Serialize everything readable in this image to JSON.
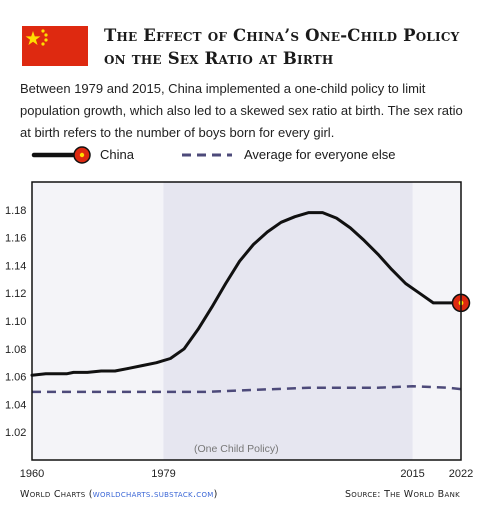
{
  "header": {
    "title": "The Effect of China’s One-Child Policy on the Sex Ratio at Birth",
    "description": "Between 1979 and 2015, China implemented a one-child policy to limit population growth, which also led to a skewed sex ratio at birth. The sex ratio at birth refers to the number of boys born for every girl.",
    "flag_icon": "china-flag-icon"
  },
  "legend": {
    "china": "China",
    "average": "Average for everyone else"
  },
  "footer": {
    "brand": "World Charts",
    "link": "worldcharts.substack.com",
    "source": "Source: The World Bank"
  },
  "colors": {
    "china_line": "#111111",
    "average_line": "#4d4a7a",
    "policy_band": "#e6e6f0",
    "plot_bg": "#f4f4f8",
    "flag_red": "#de2910",
    "flag_yellow": "#ffde00"
  },
  "chart_data": {
    "type": "line",
    "title": "",
    "xlabel": "",
    "ylabel": "",
    "xlim": [
      1960,
      2022
    ],
    "ylim": [
      1.0,
      1.2
    ],
    "grid": false,
    "x_ticks": [
      1960,
      1979,
      2015,
      2022
    ],
    "y_ticks": [
      1.02,
      1.04,
      1.06,
      1.08,
      1.1,
      1.12,
      1.14,
      1.16,
      1.18
    ],
    "y_tick_labels": [
      "1.02",
      "1.04",
      "1.06",
      "1.08",
      "1.10",
      "1.12",
      "1.14",
      "1.16",
      "1.18"
    ],
    "legend_position": "top",
    "annotation": {
      "text": "(One Child Policy)",
      "x_start": 1979,
      "x_end": 2015
    },
    "series": [
      {
        "name": "China",
        "style": "solid",
        "x": [
          1960,
          1962,
          1965,
          1966,
          1968,
          1970,
          1972,
          1974,
          1976,
          1978,
          1980,
          1982,
          1984,
          1986,
          1988,
          1990,
          1992,
          1994,
          1996,
          1998,
          2000,
          2002,
          2004,
          2006,
          2008,
          2010,
          2012,
          2014,
          2016,
          2018,
          2020,
          2022
        ],
        "y": [
          1.061,
          1.062,
          1.062,
          1.063,
          1.063,
          1.064,
          1.064,
          1.066,
          1.068,
          1.07,
          1.073,
          1.08,
          1.094,
          1.11,
          1.127,
          1.143,
          1.155,
          1.164,
          1.171,
          1.175,
          1.178,
          1.178,
          1.174,
          1.167,
          1.158,
          1.148,
          1.137,
          1.127,
          1.12,
          1.113,
          1.113,
          1.113
        ]
      },
      {
        "name": "Average for everyone else",
        "style": "dashed",
        "x": [
          1960,
          1970,
          1980,
          1985,
          1990,
          1995,
          2000,
          2005,
          2010,
          2015,
          2020,
          2022
        ],
        "y": [
          1.049,
          1.049,
          1.049,
          1.049,
          1.05,
          1.051,
          1.052,
          1.052,
          1.052,
          1.053,
          1.052,
          1.051
        ]
      }
    ]
  }
}
